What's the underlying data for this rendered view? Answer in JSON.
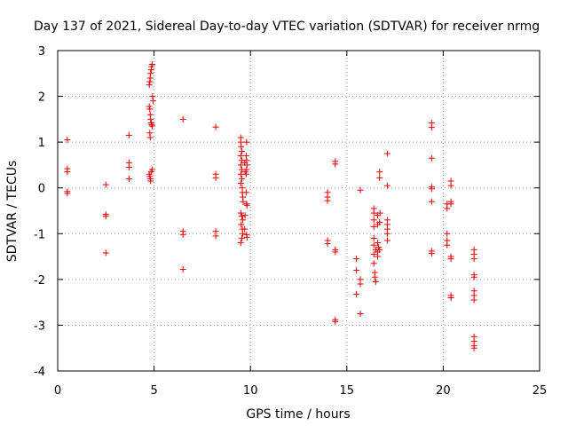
{
  "chart_data": {
    "type": "scatter",
    "title": "Day 137 of 2021, Sidereal Day-to-day VTEC variation (SDTVAR) for receiver nrmg",
    "xlabel": "GPS time / hours",
    "ylabel": "SDTVAR / TECUs",
    "xlim": [
      0,
      25
    ],
    "ylim": [
      -4,
      3
    ],
    "xticks": [
      "0",
      "5",
      "10",
      "15",
      "20",
      "25"
    ],
    "yticks": [
      "-4",
      "-3",
      "-2",
      "-1",
      "0",
      "1",
      "2",
      "3"
    ],
    "grid": true,
    "marker": "+",
    "color": "#ee0000",
    "series": [
      {
        "name": "nrmg",
        "points": [
          [
            0.5,
            1.05
          ],
          [
            0.5,
            0.42
          ],
          [
            0.5,
            0.35
          ],
          [
            0.5,
            -0.08
          ],
          [
            0.5,
            -0.12
          ],
          [
            2.5,
            0.07
          ],
          [
            2.5,
            -0.58
          ],
          [
            2.5,
            -0.62
          ],
          [
            2.5,
            -1.42
          ],
          [
            3.7,
            1.15
          ],
          [
            3.7,
            0.55
          ],
          [
            3.7,
            0.45
          ],
          [
            3.7,
            0.2
          ],
          [
            4.75,
            2.25
          ],
          [
            4.78,
            2.32
          ],
          [
            4.8,
            2.4
          ],
          [
            4.82,
            2.5
          ],
          [
            4.85,
            2.58
          ],
          [
            4.87,
            2.65
          ],
          [
            4.9,
            2.7
          ],
          [
            4.75,
            1.78
          ],
          [
            4.78,
            1.72
          ],
          [
            4.8,
            1.6
          ],
          [
            4.82,
            1.5
          ],
          [
            4.85,
            1.42
          ],
          [
            4.88,
            1.38
          ],
          [
            4.9,
            1.35
          ],
          [
            4.92,
            2.0
          ],
          [
            4.95,
            1.9
          ],
          [
            4.78,
            1.2
          ],
          [
            4.8,
            1.1
          ],
          [
            4.75,
            0.3
          ],
          [
            4.78,
            0.25
          ],
          [
            4.8,
            0.2
          ],
          [
            4.82,
            0.15
          ],
          [
            4.85,
            0.35
          ],
          [
            4.9,
            0.4
          ],
          [
            6.5,
            1.5
          ],
          [
            6.5,
            -0.95
          ],
          [
            6.5,
            -1.02
          ],
          [
            6.5,
            -1.78
          ],
          [
            8.2,
            1.33
          ],
          [
            8.2,
            0.3
          ],
          [
            8.2,
            0.22
          ],
          [
            8.2,
            -0.95
          ],
          [
            8.2,
            -1.05
          ],
          [
            9.5,
            1.1
          ],
          [
            9.5,
            1.0
          ],
          [
            9.52,
            0.9
          ],
          [
            9.55,
            0.8
          ],
          [
            9.5,
            0.7
          ],
          [
            9.55,
            0.6
          ],
          [
            9.5,
            0.5
          ],
          [
            9.55,
            0.4
          ],
          [
            9.5,
            0.3
          ],
          [
            9.55,
            0.2
          ],
          [
            9.5,
            0.1
          ],
          [
            9.58,
            -0.1
          ],
          [
            9.6,
            -0.2
          ],
          [
            9.62,
            -0.3
          ],
          [
            9.58,
            0.0
          ],
          [
            9.5,
            -0.55
          ],
          [
            9.55,
            -0.62
          ],
          [
            9.6,
            -0.7
          ],
          [
            9.52,
            -0.8
          ],
          [
            9.58,
            -0.9
          ],
          [
            9.6,
            -1.0
          ],
          [
            9.55,
            -1.1
          ],
          [
            9.5,
            -1.2
          ],
          [
            9.8,
            1.0
          ],
          [
            9.78,
            0.7
          ],
          [
            9.8,
            0.6
          ],
          [
            9.82,
            0.5
          ],
          [
            9.8,
            0.4
          ],
          [
            9.78,
            0.3
          ],
          [
            9.78,
            -0.1
          ],
          [
            9.8,
            -0.35
          ],
          [
            9.82,
            -0.38
          ],
          [
            9.8,
            -1.02
          ],
          [
            9.82,
            -1.08
          ],
          [
            9.7,
            0.55
          ],
          [
            9.72,
            0.35
          ],
          [
            9.72,
            -0.6
          ],
          [
            9.7,
            -0.9
          ],
          [
            14.0,
            -0.1
          ],
          [
            14.0,
            -0.2
          ],
          [
            14.0,
            -0.28
          ],
          [
            14.0,
            -1.15
          ],
          [
            14.0,
            -1.22
          ],
          [
            14.4,
            0.58
          ],
          [
            14.4,
            0.52
          ],
          [
            14.4,
            -1.35
          ],
          [
            14.4,
            -1.4
          ],
          [
            14.4,
            -2.88
          ],
          [
            14.4,
            -2.92
          ],
          [
            15.5,
            -1.55
          ],
          [
            15.5,
            -1.8
          ],
          [
            15.5,
            -2.32
          ],
          [
            15.7,
            -0.05
          ],
          [
            15.7,
            -2.0
          ],
          [
            15.7,
            -2.1
          ],
          [
            15.7,
            -2.75
          ],
          [
            16.4,
            -0.45
          ],
          [
            16.4,
            -0.55
          ],
          [
            16.4,
            -0.7
          ],
          [
            16.4,
            -0.85
          ],
          [
            16.4,
            -1.1
          ],
          [
            16.4,
            -1.25
          ],
          [
            16.4,
            -1.45
          ],
          [
            16.4,
            -1.65
          ],
          [
            16.45,
            -1.85
          ],
          [
            16.45,
            -1.95
          ],
          [
            16.5,
            -2.05
          ],
          [
            16.5,
            -1.35
          ],
          [
            16.6,
            -0.6
          ],
          [
            16.6,
            -0.8
          ],
          [
            16.6,
            -1.2
          ],
          [
            16.6,
            -1.4
          ],
          [
            16.6,
            -1.5
          ],
          [
            16.65,
            -1.3
          ],
          [
            16.7,
            0.35
          ],
          [
            16.7,
            0.22
          ],
          [
            16.72,
            -0.55
          ],
          [
            16.7,
            -0.75
          ],
          [
            16.7,
            -1.35
          ],
          [
            17.1,
            0.75
          ],
          [
            17.1,
            0.05
          ],
          [
            17.1,
            -0.7
          ],
          [
            17.1,
            -0.8
          ],
          [
            17.1,
            -0.9
          ],
          [
            17.1,
            -1.0
          ],
          [
            17.1,
            -1.15
          ],
          [
            19.4,
            1.42
          ],
          [
            19.4,
            1.32
          ],
          [
            19.4,
            0.65
          ],
          [
            19.4,
            0.02
          ],
          [
            19.4,
            -0.02
          ],
          [
            19.4,
            -0.3
          ],
          [
            19.4,
            -1.38
          ],
          [
            19.4,
            -1.43
          ],
          [
            20.2,
            -0.35
          ],
          [
            20.2,
            -0.45
          ],
          [
            20.2,
            -1.0
          ],
          [
            20.2,
            -1.15
          ],
          [
            20.2,
            -1.25
          ],
          [
            20.4,
            0.15
          ],
          [
            20.4,
            0.05
          ],
          [
            20.4,
            -0.3
          ],
          [
            20.4,
            -0.35
          ],
          [
            20.4,
            -1.5
          ],
          [
            20.4,
            -1.55
          ],
          [
            20.4,
            -2.35
          ],
          [
            20.4,
            -2.4
          ],
          [
            21.6,
            -1.35
          ],
          [
            21.6,
            -1.45
          ],
          [
            21.6,
            -1.55
          ],
          [
            21.6,
            -1.9
          ],
          [
            21.6,
            -1.95
          ],
          [
            21.6,
            -2.25
          ],
          [
            21.6,
            -2.35
          ],
          [
            21.6,
            -2.45
          ],
          [
            21.6,
            -3.25
          ],
          [
            21.6,
            -3.35
          ],
          [
            21.6,
            -3.45
          ],
          [
            21.6,
            -3.5
          ]
        ]
      }
    ]
  }
}
